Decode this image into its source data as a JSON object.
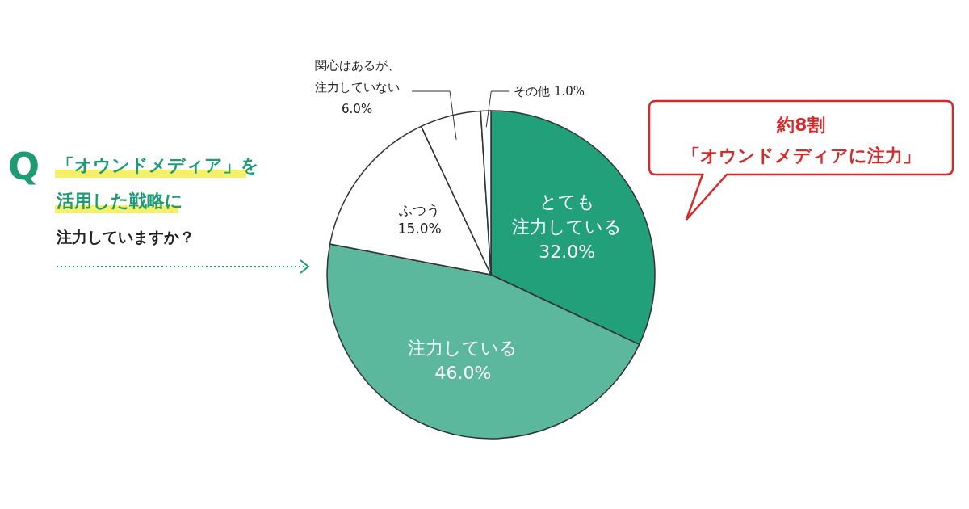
{
  "chart_data": {
    "type": "pie",
    "title": "「オウンドメディア」を活用した戦略に注力していますか？",
    "categories": [
      "とても注力している",
      "注力している",
      "ふつう",
      "関心はあるが、注力していない",
      "その他"
    ],
    "values": [
      32.0,
      46.0,
      15.0,
      6.0,
      1.0
    ],
    "value_labels": [
      "32.0%",
      "46.0%",
      "15.0%",
      "6.0%",
      "1.0%"
    ],
    "colors": [
      "#22a07a",
      "#5bb89c",
      "#ffffff",
      "#ffffff",
      "#ffffff"
    ],
    "annotations": [
      "Q",
      "約8割「オウンドメディアに注力」"
    ]
  }
}
